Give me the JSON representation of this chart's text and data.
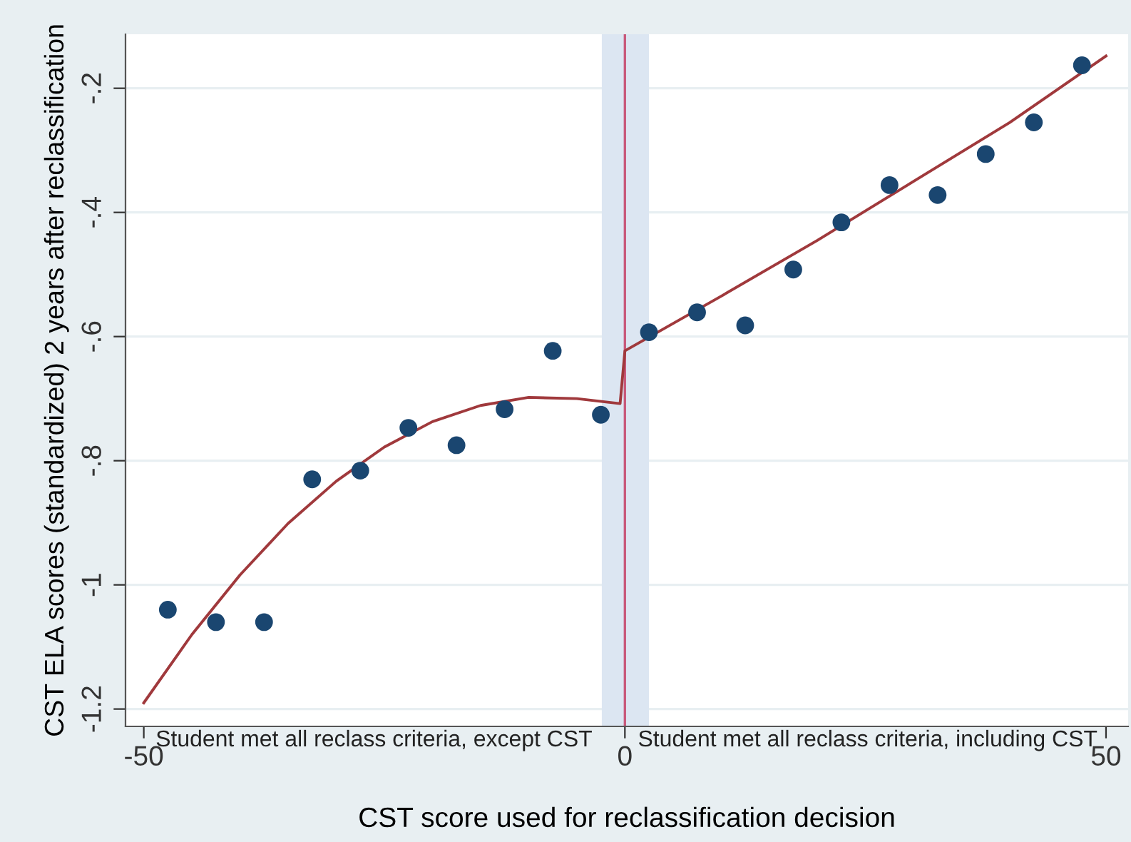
{
  "chart_data": {
    "type": "scatter",
    "xlabel": "CST score used for reclassification decision",
    "ylabel": "CST ELA scores (standardized) 2 years after reclassification",
    "annotations": [
      "Student met all reclass criteria, except CST",
      "Student met all reclass criteria, including CST"
    ],
    "series": [
      {
        "marker": "circle",
        "color": "#1a4670",
        "x": [
          -47.5,
          -42.5,
          -37.5,
          -32.5,
          -27.5,
          -22.5,
          -17.5,
          -12.5,
          -7.5,
          -2.5,
          2.5,
          7.5,
          12.5,
          17.5,
          22.5,
          27.5,
          32.5,
          37.5,
          42.5,
          47.5
        ],
        "values": [
          -1.04,
          -1.06,
          -1.06,
          -0.83,
          -0.816,
          -0.747,
          -0.775,
          -0.717,
          -0.623,
          -0.726,
          -0.593,
          -0.561,
          -0.582,
          -0.492,
          -0.416,
          -0.356,
          -0.372,
          -0.306,
          -0.255,
          -0.163
        ]
      },
      {
        "type": "line",
        "marker": "none",
        "color": "#a0393c",
        "x": [
          -50,
          -45,
          -40,
          -35,
          -30,
          -25,
          -20,
          -15,
          -10,
          -5,
          -0.5,
          0,
          10,
          20,
          30,
          40,
          50
        ],
        "values": [
          -1.19,
          -1.08,
          -0.984,
          -0.901,
          -0.833,
          -0.778,
          -0.737,
          -0.711,
          -0.698,
          -0.7,
          -0.708,
          -0.623,
          -0.535,
          -0.445,
          -0.35,
          -0.255,
          -0.148
        ]
      }
    ],
    "ref_lines": [
      {
        "axis": "x",
        "value": 0,
        "color": "#c8587a"
      }
    ],
    "bands": [
      {
        "axis": "x",
        "from": -2.4,
        "to": 2.5,
        "color": "#dce6f2"
      }
    ],
    "xlim": [
      -51.9,
      52.3
    ],
    "ylim": [
      -1.228,
      -0.113
    ],
    "xticks": [
      -50,
      0,
      50
    ],
    "yticks": [
      {
        "value": -0.2,
        "label": "-.2"
      },
      {
        "value": -0.4,
        "label": "-.4"
      },
      {
        "value": -0.6,
        "label": "-.6"
      },
      {
        "value": -0.8,
        "label": "-.8"
      },
      {
        "value": -1,
        "label": "-1"
      },
      {
        "value": -1.2,
        "label": "-1.2"
      }
    ],
    "grid": "y"
  }
}
